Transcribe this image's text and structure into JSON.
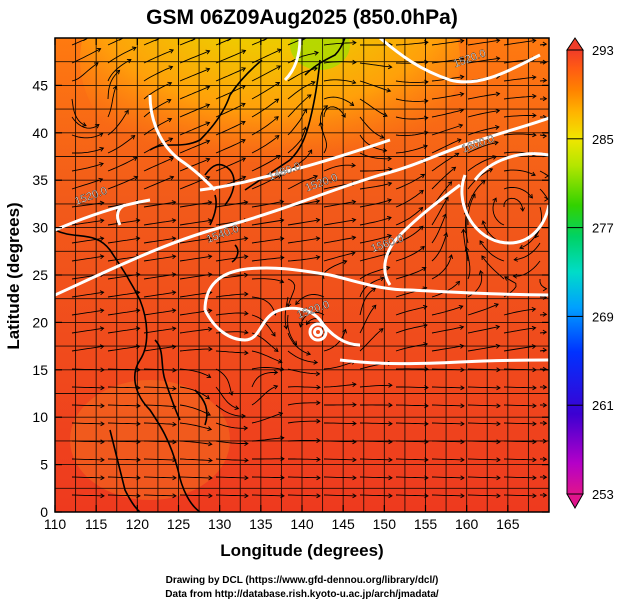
{
  "figure": {
    "title": "GSM 06Z09Aug2025 (850.0hPa)",
    "xlabel": "Longitude (degrees)",
    "ylabel": "Latitude  (degrees)",
    "x_ticks": [
      "110",
      "115",
      "120",
      "125",
      "130",
      "135",
      "140",
      "145",
      "150",
      "155",
      "160",
      "165"
    ],
    "y_ticks": [
      "0",
      "5",
      "10",
      "15",
      "20",
      "25",
      "30",
      "35",
      "40",
      "45"
    ],
    "x_range": [
      110,
      170
    ],
    "y_range": [
      0,
      50
    ],
    "credit_line1": "Drawing by DCL (https://www.gfd-dennou.org/library/dcl/)",
    "credit_line2": "Data from http://database.rish.kyoto-u.ac.jp/arch/jmadata/"
  },
  "colorbar": {
    "labels": [
      "293",
      "285",
      "277",
      "269",
      "261",
      "253"
    ],
    "range": [
      253,
      293
    ],
    "colors": [
      "#e0148c",
      "#b400c8",
      "#3c00d2",
      "#0032ff",
      "#00a0ff",
      "#00dcc8",
      "#00d264",
      "#32d200",
      "#b4e600",
      "#f0e600",
      "#ffb400",
      "#ff8200",
      "#ff5a14",
      "#f03c28"
    ]
  },
  "contours": [
    {
      "label": "1480.0",
      "lon": 138.0,
      "lat": 35.6
    },
    {
      "label": "1520.0",
      "lon": 142.5,
      "lat": 34.4
    },
    {
      "label": "1540.0",
      "lon": 130.5,
      "lat": 29.0
    },
    {
      "label": "1560.0",
      "lon": 150.5,
      "lat": 28.0
    },
    {
      "label": "1600.0",
      "lon": 161.5,
      "lat": 38.5
    },
    {
      "label": "1520.0",
      "lon": 114.5,
      "lat": 33.0
    },
    {
      "label": "1520.0",
      "lon": 141.5,
      "lat": 21.0
    },
    {
      "label": "1520.0",
      "lon": 160.5,
      "lat": 47.5
    }
  ],
  "map_colors": {
    "background": "#f03c1e",
    "north_warm": "#ff8c0a",
    "north_yellow": "#f0c000",
    "north_green": "#b4dc00",
    "contour": "#ffffff",
    "streamline": "#000000"
  }
}
